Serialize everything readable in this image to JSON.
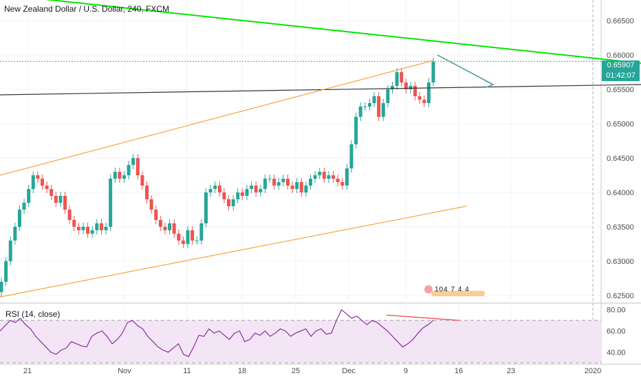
{
  "header": {
    "title": "New Zealand Dollar / U.S. Dollar, 240, FXCM"
  },
  "price_axis": {
    "labels": [
      "0.66500",
      "0.66000",
      "0.65500",
      "0.65000",
      "0.64500",
      "0.64000",
      "0.63500",
      "0.63000",
      "0.62500"
    ],
    "current_price": "0.65907",
    "countdown": "01:42:07"
  },
  "time_axis": {
    "labels": [
      "21",
      "Nov",
      "11",
      "18",
      "25",
      "Dec",
      "9",
      "16",
      "23",
      "2020"
    ]
  },
  "rsi": {
    "label": "RSI (14, close)",
    "labels": [
      "80.00",
      "60.00",
      "40.00"
    ]
  },
  "events": {
    "counts": "104 7 4 4"
  },
  "colors": {
    "up": "#26a69a",
    "down": "#ef5350",
    "trend_green": "#00e600",
    "channel": "#f7a53b",
    "support": "#333333",
    "arrow": "#5f9ea0",
    "rsi_line": "#8a2da0",
    "rsi_fill": "#f3e5f5"
  },
  "chart_data": {
    "type": "candlestick",
    "title": "New Zealand Dollar / U.S. Dollar, 240, FXCM",
    "ylim": [
      0.624,
      0.668
    ],
    "y_ticks": [
      0.625,
      0.63,
      0.635,
      0.64,
      0.645,
      0.65,
      0.655,
      0.66,
      0.665
    ],
    "current_price": 0.65907,
    "series_close": [
      0.627,
      0.63,
      0.633,
      0.635,
      0.6375,
      0.6385,
      0.6405,
      0.6425,
      0.642,
      0.641,
      0.6405,
      0.6395,
      0.6385,
      0.6395,
      0.6375,
      0.636,
      0.635,
      0.6345,
      0.635,
      0.634,
      0.6345,
      0.6355,
      0.6345,
      0.635,
      0.642,
      0.643,
      0.642,
      0.6425,
      0.644,
      0.645,
      0.6425,
      0.641,
      0.639,
      0.6375,
      0.636,
      0.635,
      0.6345,
      0.6355,
      0.634,
      0.633,
      0.6325,
      0.6345,
      0.633,
      0.633,
      0.6355,
      0.64,
      0.6405,
      0.641,
      0.64,
      0.639,
      0.638,
      0.639,
      0.64,
      0.6395,
      0.6405,
      0.641,
      0.64,
      0.6405,
      0.642,
      0.642,
      0.641,
      0.6415,
      0.642,
      0.641,
      0.6405,
      0.6415,
      0.64,
      0.641,
      0.642,
      0.6425,
      0.643,
      0.642,
      0.6425,
      0.642,
      0.6415,
      0.641,
      0.6435,
      0.647,
      0.651,
      0.6525,
      0.6525,
      0.653,
      0.654,
      0.651,
      0.653,
      0.655,
      0.6555,
      0.6575,
      0.656,
      0.655,
      0.6555,
      0.654,
      0.6535,
      0.653,
      0.656,
      0.659
    ],
    "channel_upper": [
      [
        0,
        0.6425
      ],
      [
        630,
        0.6592
      ]
    ],
    "channel_lower": [
      [
        0,
        0.6248
      ],
      [
        678,
        0.638
      ]
    ],
    "trendline": [
      [
        0,
        0.6688
      ],
      [
        932,
        0.6588
      ]
    ],
    "support_line": [
      [
        0,
        0.6542
      ],
      [
        932,
        0.6557
      ]
    ],
    "forecast_arrow": [
      [
        0.66
      ],
      [
        0.6557
      ]
    ],
    "rsi_values": [
      60,
      65,
      70,
      68,
      72,
      66,
      62,
      55,
      50,
      45,
      40,
      38,
      42,
      44,
      50,
      48,
      46,
      45,
      55,
      58,
      60,
      55,
      48,
      52,
      58,
      68,
      70,
      65,
      62,
      55,
      50,
      45,
      42,
      40,
      44,
      48,
      38,
      36,
      45,
      56,
      55,
      62,
      58,
      60,
      56,
      52,
      58,
      60,
      50,
      52,
      58,
      56,
      60,
      55,
      58,
      62,
      60,
      55,
      58,
      60,
      62,
      55,
      60,
      62,
      57,
      58,
      70,
      80,
      76,
      72,
      74,
      70,
      66,
      70,
      68,
      64,
      60,
      55,
      50,
      45,
      48,
      52,
      58,
      63,
      66,
      70
    ],
    "rsi_ylim": [
      30,
      85
    ],
    "rsi_ticks": [
      40,
      60,
      80
    ],
    "rsi_band": [
      30,
      70
    ]
  }
}
